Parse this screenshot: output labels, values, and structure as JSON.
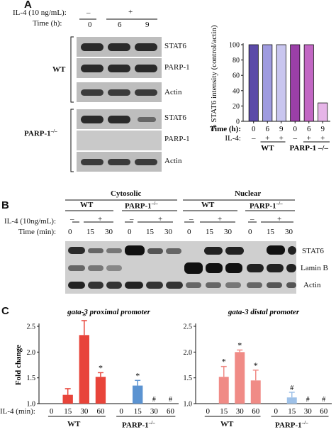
{
  "panel_a": {
    "letter": "A",
    "il4_label": "IL-4 (10 ng/mL):",
    "time_label": "Time (h):",
    "il4_minus": "–",
    "il4_plus": "+",
    "times": [
      "0",
      "6",
      "9"
    ],
    "wt_label": "WT",
    "parp_label": "PARP-1",
    "parp_sup": "–/–",
    "blot_labels_wt": [
      "STAT6",
      "PARP-1",
      "Actin"
    ],
    "blot_labels_parp": [
      "STAT6",
      "PARP-1",
      "Actin"
    ]
  },
  "panel_b": {
    "letter": "B",
    "cytosolic_label": "Cytosolic",
    "nuclear_label": "Nuclear",
    "wt_label": "WT",
    "parp_label": "PARP-1",
    "parp_sup": "–/–",
    "il4_label": "IL-4 (10ng/mL):",
    "time_label": "Time (min):",
    "minus": "–",
    "plus": "+",
    "times": [
      "0",
      "15",
      "30",
      "0",
      "15",
      "30",
      "0",
      "15",
      "30",
      "0",
      "15",
      "30"
    ],
    "blot_labels": [
      "STAT6",
      "Lamin B",
      "Actin"
    ]
  },
  "panel_c": {
    "letter": "C",
    "il4_label": "IL-4 (min):",
    "wt_label": "WT",
    "parp_label": "PARP-1",
    "parp_sup": "–/–"
  },
  "chart_data": [
    {
      "type": "bar",
      "ylabel": "% STAT6 intensity (control/actin)",
      "ylim": [
        0,
        100
      ],
      "yticks": [
        "0",
        "20",
        "40",
        "60",
        "80",
        "100"
      ],
      "time_row_label": "Time (h):",
      "il4_row_label": "IL-4:",
      "categories": [
        "0",
        "6",
        "9",
        "0",
        "6",
        "9"
      ],
      "il4": [
        "–",
        "+",
        "+",
        "–",
        "+",
        "+"
      ],
      "groups": [
        "WT",
        "PARP-1 –/–"
      ],
      "values": [
        100,
        100,
        100,
        100,
        100,
        24
      ],
      "colors": [
        "#5b4aa8",
        "#9f9be0",
        "#c9c6ef",
        "#9b3fa8",
        "#c267c4",
        "#e6b5e8"
      ],
      "grid": false
    },
    {
      "type": "bar",
      "title": "gata-3 proximal promoter",
      "ylabel": "Fold change",
      "ylim": [
        1.0,
        2.5
      ],
      "yticks": [
        "1.0",
        "1.5",
        "2.0",
        "2.5"
      ],
      "categories": [
        "0",
        "15",
        "30",
        "60",
        "0",
        "15",
        "30",
        "60"
      ],
      "groups": [
        "WT",
        "PARP-1 –/–"
      ],
      "values": [
        1.0,
        1.17,
        2.33,
        1.52,
        1.0,
        1.35,
        1.0,
        1.0
      ],
      "errors": [
        0,
        0.12,
        0.28,
        0.08,
        0,
        0.1,
        0,
        0
      ],
      "annotations": [
        "",
        "",
        "*",
        "*",
        "",
        "*",
        "#",
        "#"
      ],
      "colors": [
        "#e8443a",
        "#e8443a",
        "#e8443a",
        "#e8443a",
        "#5b93d1",
        "#5b93d1",
        "#5b93d1",
        "#5b93d1"
      ],
      "grid": false
    },
    {
      "type": "bar",
      "title": "gata-3 distal promoter",
      "ylim": [
        1.0,
        2.5
      ],
      "yticks": [
        "1.0",
        "1.5",
        "2.0",
        "2.5"
      ],
      "categories": [
        "0",
        "15",
        "30",
        "60",
        "0",
        "15",
        "30",
        "60"
      ],
      "groups": [
        "WT",
        "PARP-1 –/–"
      ],
      "values": [
        1.0,
        1.52,
        2.0,
        1.45,
        1.0,
        1.12,
        1.0,
        1.0
      ],
      "errors": [
        0,
        0.2,
        0.04,
        0.2,
        0,
        0.1,
        0,
        0
      ],
      "annotations": [
        "",
        "*",
        "*",
        "*",
        "",
        "#",
        "#",
        "#"
      ],
      "colors": [
        "#f08b86",
        "#f08b86",
        "#f08b86",
        "#f08b86",
        "#9ec1e8",
        "#9ec1e8",
        "#9ec1e8",
        "#9ec1e8"
      ],
      "grid": false
    }
  ]
}
